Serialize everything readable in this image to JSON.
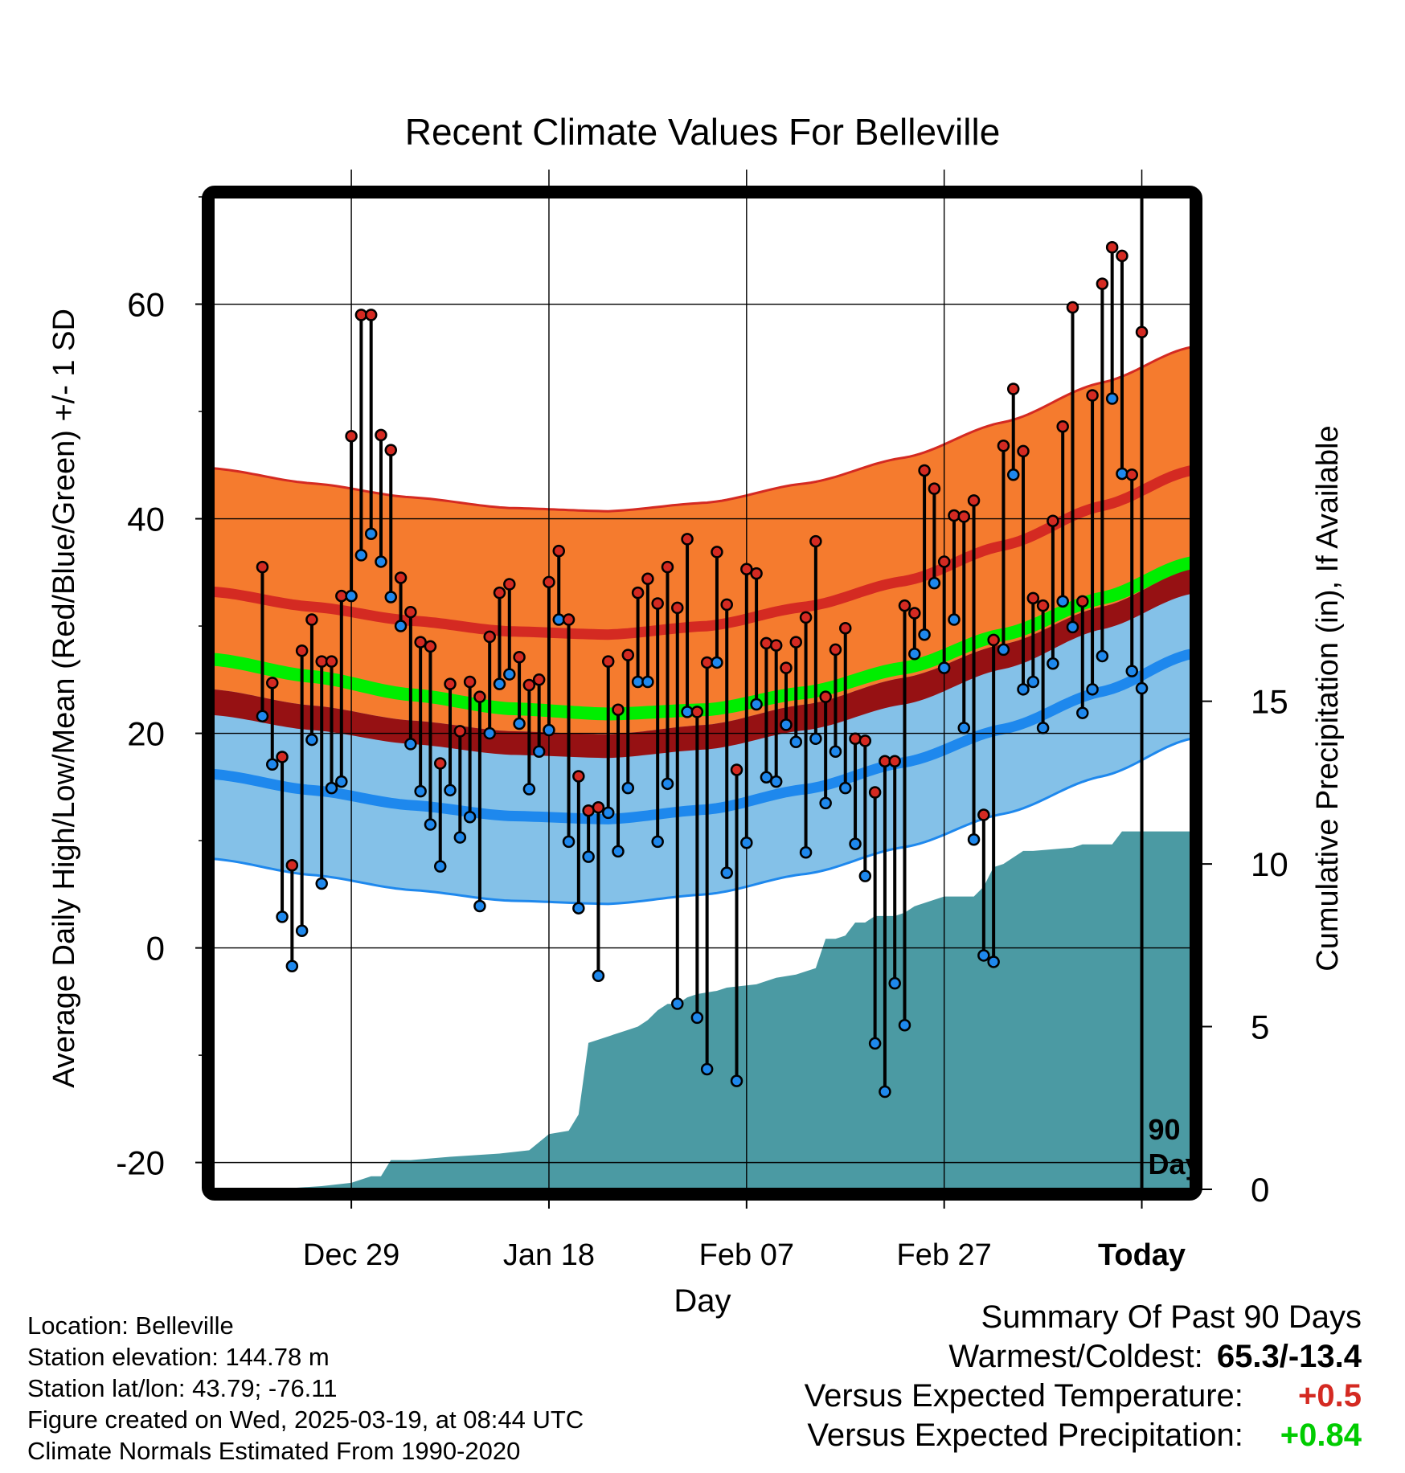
{
  "chart_data": {
    "type": "line",
    "title": "Recent Climate Values For Belleville",
    "xlabel": "Day",
    "ylabel_left": "Average Daily High/Low/Mean (Red/Blue/Green) +/- 1 SD",
    "ylabel_right": "Cumulative Precipitation (in), If Available",
    "ylim_left": [
      -22.5,
      70
    ],
    "ylim_right": [
      0,
      30.5
    ],
    "yticks_left": [
      -20,
      0,
      20,
      40,
      60
    ],
    "yticks_right": [
      0,
      5,
      10,
      15
    ],
    "x_range_days": [
      -94,
      5
    ],
    "x_ticks": [
      {
        "day": -80,
        "label": "Dec 29"
      },
      {
        "day": -60,
        "label": "Jan 18"
      },
      {
        "day": -40,
        "label": "Feb 07"
      },
      {
        "day": -20,
        "label": "Feb 27"
      },
      {
        "day": 0,
        "label": "Today"
      }
    ],
    "today_marker_label": [
      "90",
      "Days"
    ],
    "grid": true,
    "colors": {
      "high_band": "#f57b2e",
      "high_line": "#d42a22",
      "low_band": "#84c1e8",
      "low_line": "#1e88ed",
      "overlap_band": "#961113",
      "mean_line": "#00ee00",
      "precip_area": "#4b9aa3",
      "obs_high_dot": "#d42a22",
      "obs_low_dot": "#1e88ed",
      "positive_temp": "#d42a22",
      "positive_precip": "#00cc00"
    },
    "normals": {
      "day": [
        -94,
        -84,
        -74,
        -64,
        -54,
        -44,
        -34,
        -24,
        -14,
        -4,
        5
      ],
      "high_mean": [
        33.2,
        31.8,
        30.5,
        29.5,
        29.2,
        30.0,
        31.8,
        34.2,
        37.5,
        41.2,
        44.5
      ],
      "high_sd": 11.5,
      "low_mean": [
        16.2,
        14.7,
        13.3,
        12.3,
        12.0,
        12.9,
        14.8,
        17.3,
        20.4,
        23.9,
        27.4
      ],
      "low_sd": 7.9,
      "mean_line": [
        26.9,
        25.3,
        23.6,
        22.3,
        21.8,
        22.2,
        23.8,
        26.1,
        29.2,
        32.6,
        35.9
      ]
    },
    "observed": {
      "day": [
        -89,
        -88,
        -87,
        -86,
        -85,
        -84,
        -83,
        -82,
        -81,
        -80,
        -79,
        -78,
        -77,
        -76,
        -75,
        -74,
        -73,
        -72,
        -71,
        -70,
        -69,
        -68,
        -67,
        -66,
        -65,
        -64,
        -63,
        -62,
        -61,
        -60,
        -59,
        -58,
        -57,
        -56,
        -55,
        -54,
        -53,
        -52,
        -51,
        -50,
        -49,
        -48,
        -47,
        -46,
        -45,
        -44,
        -43,
        -42,
        -41,
        -40,
        -39,
        -38,
        -37,
        -36,
        -35,
        -34,
        -33,
        -32,
        -31,
        -30,
        -29,
        -28,
        -27,
        -26,
        -25,
        -24,
        -23,
        -22,
        -21,
        -20,
        -19,
        -18,
        -17,
        -16,
        -15,
        -14,
        -13,
        -12,
        -11,
        -10,
        -9,
        -8,
        -7,
        -6,
        -5,
        -4,
        -3,
        -2,
        -1,
        0
      ],
      "high": [
        35.5,
        24.7,
        17.8,
        7.7,
        27.7,
        30.6,
        26.7,
        26.7,
        32.8,
        47.7,
        59.0,
        59.0,
        47.8,
        46.4,
        34.5,
        31.3,
        28.5,
        28.1,
        17.2,
        24.6,
        20.2,
        24.8,
        23.4,
        29.0,
        33.1,
        33.9,
        27.1,
        24.5,
        25.0,
        34.1,
        37.0,
        30.6,
        16.0,
        12.8,
        13.1,
        26.7,
        22.2,
        27.3,
        33.1,
        34.4,
        32.1,
        35.5,
        31.7,
        38.1,
        22.0,
        26.6,
        36.9,
        32.0,
        16.6,
        35.3,
        34.9,
        28.4,
        28.2,
        26.1,
        28.5,
        30.8,
        37.9,
        23.4,
        27.8,
        29.8,
        19.5,
        19.3,
        14.5,
        17.4,
        17.4,
        31.9,
        31.2,
        44.5,
        42.8,
        36.0,
        40.3,
        40.2,
        41.7,
        12.4,
        28.7,
        46.8,
        52.1,
        46.3,
        32.6,
        31.9,
        39.8,
        48.6,
        59.7,
        32.3,
        51.5,
        61.9,
        65.3,
        64.5,
        44.1,
        57.4
      ],
      "low": [
        21.6,
        17.1,
        2.9,
        -1.7,
        1.6,
        19.4,
        6.0,
        14.9,
        15.5,
        32.8,
        36.6,
        38.6,
        36.0,
        32.7,
        30.0,
        19.0,
        14.6,
        11.5,
        7.6,
        14.7,
        10.3,
        12.2,
        3.9,
        20.0,
        24.6,
        25.5,
        20.9,
        14.8,
        18.3,
        20.3,
        30.6,
        9.9,
        3.7,
        8.5,
        -2.6,
        12.6,
        9.0,
        14.9,
        24.8,
        24.8,
        9.9,
        15.3,
        -5.2,
        22.0,
        -6.5,
        -11.3,
        26.6,
        7.0,
        -12.4,
        9.8,
        22.7,
        15.9,
        15.5,
        20.8,
        19.2,
        8.9,
        19.5,
        13.5,
        18.3,
        14.9,
        9.7,
        6.7,
        -8.9,
        -13.4,
        -3.3,
        -7.2,
        27.4,
        29.2,
        34.0,
        26.1,
        30.6,
        20.5,
        10.1,
        -0.7,
        -1.3,
        27.8,
        44.1,
        24.1,
        24.8,
        20.5,
        26.5,
        32.3,
        29.9,
        21.9,
        24.1,
        27.2,
        51.2,
        44.2,
        25.8,
        24.2
      ]
    },
    "precip_cumulative": {
      "day": [
        -94,
        -88,
        -83,
        -80,
        -78,
        -77,
        -76,
        -74,
        -70,
        -65,
        -62,
        -60,
        -58,
        -57,
        -56,
        -54,
        -53,
        -52,
        -51,
        -50,
        -49,
        -48,
        -47,
        -46,
        -45,
        -43,
        -42,
        -39,
        -37,
        -35,
        -34,
        -33,
        -32,
        -31,
        -30,
        -29,
        -28,
        -27,
        -25,
        -24,
        -23,
        -21,
        -20,
        -17,
        -16,
        -15,
        -14,
        -13,
        -12,
        -11,
        -7,
        -6,
        -5,
        -4,
        -3,
        -2,
        -1,
        0,
        5
      ],
      "value": [
        0.0,
        0.0,
        0.1,
        0.2,
        0.4,
        0.4,
        0.9,
        0.9,
        1.0,
        1.1,
        1.2,
        1.7,
        1.8,
        2.3,
        4.5,
        4.7,
        4.8,
        4.9,
        5.0,
        5.2,
        5.5,
        5.7,
        5.7,
        5.9,
        6.0,
        6.1,
        6.2,
        6.3,
        6.5,
        6.6,
        6.7,
        6.8,
        7.7,
        7.7,
        7.8,
        8.2,
        8.2,
        8.4,
        8.4,
        8.5,
        8.7,
        8.9,
        9.0,
        9.0,
        9.3,
        9.9,
        10.0,
        10.2,
        10.4,
        10.4,
        10.5,
        10.6,
        10.6,
        10.6,
        10.6,
        11.0,
        11.0,
        11.0,
        11.0
      ]
    }
  },
  "footer": {
    "location": "Location: Belleville",
    "elevation": "Station elevation: 144.78 m",
    "latlon": "Station lat/lon: 43.79; -76.11",
    "created": "Figure created on Wed, 2025-03-19, at 08:44 UTC",
    "normals": "Climate Normals Estimated From 1990-2020"
  },
  "summary": {
    "heading": "Summary Of Past 90 Days",
    "warmest_label": "Warmest/Coldest:",
    "warmest_value": "65.3/-13.4",
    "temp_label": "Versus Expected Temperature:",
    "temp_value": "+0.5",
    "precip_label": "Versus Expected Precipitation:",
    "precip_value": "+0.84"
  }
}
